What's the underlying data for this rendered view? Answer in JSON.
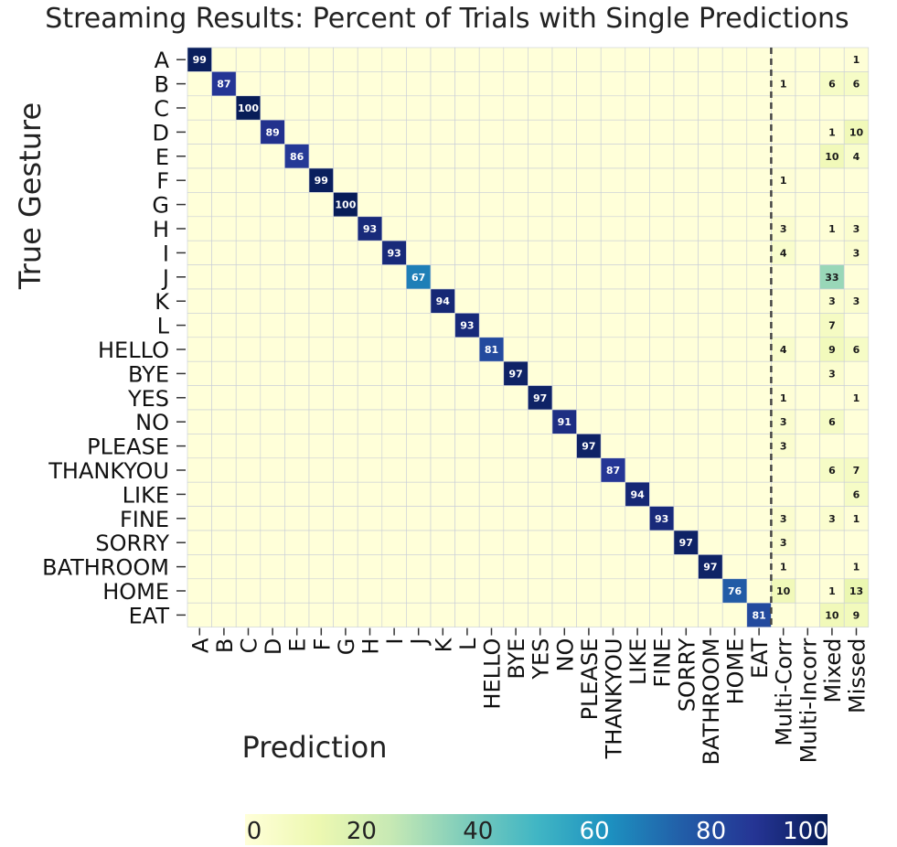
{
  "chart_data": {
    "type": "heatmap",
    "title": "Streaming Results: Percent of Trials with Single Predictions",
    "xlabel": "Prediction",
    "ylabel": "True Gesture",
    "rows": [
      "A",
      "B",
      "C",
      "D",
      "E",
      "F",
      "G",
      "H",
      "I",
      "J",
      "K",
      "L",
      "HELLO",
      "BYE",
      "YES",
      "NO",
      "PLEASE",
      "THANKYOU",
      "LIKE",
      "FINE",
      "SORRY",
      "BATHROOM",
      "HOME",
      "EAT"
    ],
    "columns": [
      "A",
      "B",
      "C",
      "D",
      "E",
      "F",
      "G",
      "H",
      "I",
      "J",
      "K",
      "L",
      "HELLO",
      "BYE",
      "YES",
      "NO",
      "PLEASE",
      "THANKYOU",
      "LIKE",
      "FINE",
      "SORRY",
      "BATHROOM",
      "HOME",
      "EAT",
      "Multi-Corr",
      "Multi-Incorr",
      "Mixed",
      "Missed"
    ],
    "values": [
      [
        99,
        null,
        null,
        null,
        null,
        null,
        null,
        null,
        null,
        null,
        null,
        null,
        null,
        null,
        null,
        null,
        null,
        null,
        null,
        null,
        null,
        null,
        null,
        null,
        null,
        null,
        null,
        1
      ],
      [
        null,
        87,
        null,
        null,
        null,
        null,
        null,
        null,
        null,
        null,
        null,
        null,
        null,
        null,
        null,
        null,
        null,
        null,
        null,
        null,
        null,
        null,
        null,
        null,
        1,
        null,
        6,
        6
      ],
      [
        null,
        null,
        100,
        null,
        null,
        null,
        null,
        null,
        null,
        null,
        null,
        null,
        null,
        null,
        null,
        null,
        null,
        null,
        null,
        null,
        null,
        null,
        null,
        null,
        null,
        null,
        null,
        null
      ],
      [
        null,
        null,
        null,
        89,
        null,
        null,
        null,
        null,
        null,
        null,
        null,
        null,
        null,
        null,
        null,
        null,
        null,
        null,
        null,
        null,
        null,
        null,
        null,
        null,
        null,
        null,
        1,
        10
      ],
      [
        null,
        null,
        null,
        null,
        86,
        null,
        null,
        null,
        null,
        null,
        null,
        null,
        null,
        null,
        null,
        null,
        null,
        null,
        null,
        null,
        null,
        null,
        null,
        null,
        null,
        null,
        10,
        4
      ],
      [
        null,
        null,
        null,
        null,
        null,
        99,
        null,
        null,
        null,
        null,
        null,
        null,
        null,
        null,
        null,
        null,
        null,
        null,
        null,
        null,
        null,
        null,
        null,
        null,
        1,
        null,
        null,
        null
      ],
      [
        null,
        null,
        null,
        null,
        null,
        null,
        100,
        null,
        null,
        null,
        null,
        null,
        null,
        null,
        null,
        null,
        null,
        null,
        null,
        null,
        null,
        null,
        null,
        null,
        null,
        null,
        null,
        null
      ],
      [
        null,
        null,
        null,
        null,
        null,
        null,
        null,
        93,
        null,
        null,
        null,
        null,
        null,
        null,
        null,
        null,
        null,
        null,
        null,
        null,
        null,
        null,
        null,
        null,
        3,
        null,
        1,
        3
      ],
      [
        null,
        null,
        null,
        null,
        null,
        null,
        null,
        null,
        93,
        null,
        null,
        null,
        null,
        null,
        null,
        null,
        null,
        null,
        null,
        null,
        null,
        null,
        null,
        null,
        4,
        null,
        null,
        3
      ],
      [
        null,
        null,
        null,
        null,
        null,
        null,
        null,
        null,
        null,
        67,
        null,
        null,
        null,
        null,
        null,
        null,
        null,
        null,
        null,
        null,
        null,
        null,
        null,
        null,
        null,
        null,
        33,
        null
      ],
      [
        null,
        null,
        null,
        null,
        null,
        null,
        null,
        null,
        null,
        null,
        94,
        null,
        null,
        null,
        null,
        null,
        null,
        null,
        null,
        null,
        null,
        null,
        null,
        null,
        null,
        null,
        3,
        3
      ],
      [
        null,
        null,
        null,
        null,
        null,
        null,
        null,
        null,
        null,
        null,
        null,
        93,
        null,
        null,
        null,
        null,
        null,
        null,
        null,
        null,
        null,
        null,
        null,
        null,
        null,
        null,
        7,
        null
      ],
      [
        null,
        null,
        null,
        null,
        null,
        null,
        null,
        null,
        null,
        null,
        null,
        null,
        81,
        null,
        null,
        null,
        null,
        null,
        null,
        null,
        null,
        null,
        null,
        null,
        4,
        null,
        9,
        6
      ],
      [
        null,
        null,
        null,
        null,
        null,
        null,
        null,
        null,
        null,
        null,
        null,
        null,
        null,
        97,
        null,
        null,
        null,
        null,
        null,
        null,
        null,
        null,
        null,
        null,
        null,
        null,
        3,
        null
      ],
      [
        null,
        null,
        null,
        null,
        null,
        null,
        null,
        null,
        null,
        null,
        null,
        null,
        null,
        null,
        97,
        null,
        null,
        null,
        null,
        null,
        null,
        null,
        null,
        null,
        1,
        null,
        null,
        1
      ],
      [
        null,
        null,
        null,
        null,
        null,
        null,
        null,
        null,
        null,
        null,
        null,
        null,
        null,
        null,
        null,
        91,
        null,
        null,
        null,
        null,
        null,
        null,
        null,
        null,
        3,
        null,
        6,
        null
      ],
      [
        null,
        null,
        null,
        null,
        null,
        null,
        null,
        null,
        null,
        null,
        null,
        null,
        null,
        null,
        null,
        null,
        97,
        null,
        null,
        null,
        null,
        null,
        null,
        null,
        3,
        null,
        null,
        null
      ],
      [
        null,
        null,
        null,
        null,
        null,
        null,
        null,
        null,
        null,
        null,
        null,
        null,
        null,
        null,
        null,
        null,
        null,
        87,
        null,
        null,
        null,
        null,
        null,
        null,
        null,
        null,
        6,
        7
      ],
      [
        null,
        null,
        null,
        null,
        null,
        null,
        null,
        null,
        null,
        null,
        null,
        null,
        null,
        null,
        null,
        null,
        null,
        null,
        94,
        null,
        null,
        null,
        null,
        null,
        null,
        null,
        null,
        6
      ],
      [
        null,
        null,
        null,
        null,
        null,
        null,
        null,
        null,
        null,
        null,
        null,
        null,
        null,
        null,
        null,
        null,
        null,
        null,
        null,
        93,
        null,
        null,
        null,
        null,
        3,
        null,
        3,
        1
      ],
      [
        null,
        null,
        null,
        null,
        null,
        null,
        null,
        null,
        null,
        null,
        null,
        null,
        null,
        null,
        null,
        null,
        null,
        null,
        null,
        null,
        97,
        null,
        null,
        null,
        3,
        null,
        null,
        null
      ],
      [
        null,
        null,
        null,
        null,
        null,
        null,
        null,
        null,
        null,
        null,
        null,
        null,
        null,
        null,
        null,
        null,
        null,
        null,
        null,
        null,
        null,
        97,
        null,
        null,
        1,
        null,
        null,
        1
      ],
      [
        null,
        null,
        null,
        null,
        null,
        null,
        null,
        null,
        null,
        null,
        null,
        null,
        null,
        null,
        null,
        null,
        null,
        null,
        null,
        null,
        null,
        null,
        76,
        null,
        10,
        null,
        1,
        13
      ],
      [
        null,
        null,
        null,
        null,
        null,
        null,
        null,
        null,
        null,
        null,
        null,
        null,
        null,
        null,
        null,
        null,
        null,
        null,
        null,
        null,
        null,
        null,
        null,
        81,
        null,
        null,
        10,
        9
      ]
    ],
    "colorbar": {
      "min": 0,
      "max": 100,
      "ticks": [
        0,
        20,
        40,
        60,
        80,
        100
      ],
      "colormap": "YlGnBu"
    },
    "separator_after_column": "EAT",
    "grid": true
  },
  "colors": {
    "background": "#ffffff",
    "gridline": "#c8cdd8",
    "text_light": "#ffffff",
    "text_dark": "#1a1a1a",
    "separator": "#444444"
  }
}
